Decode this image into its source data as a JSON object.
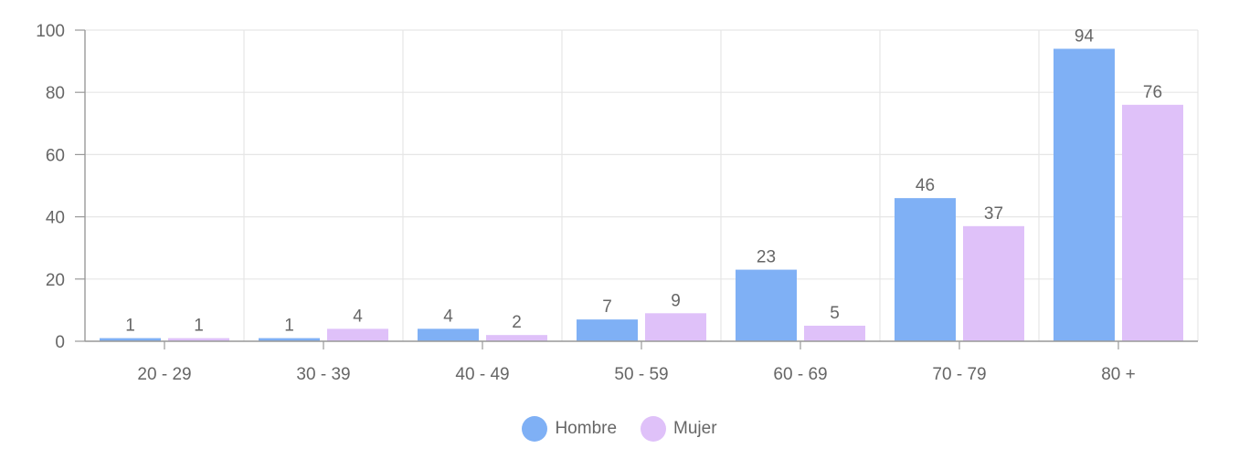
{
  "chart_data": {
    "type": "bar",
    "title": "",
    "xlabel": "",
    "ylabel": "",
    "categories": [
      "20 - 29",
      "30 - 39",
      "40 - 49",
      "50 - 59",
      "60 - 69",
      "70 - 79",
      "80 +"
    ],
    "series": [
      {
        "name": "Hombre",
        "color": "#7fb0f5",
        "values": [
          1,
          1,
          4,
          7,
          23,
          46,
          94
        ]
      },
      {
        "name": "Mujer",
        "color": "#dfc1f9",
        "values": [
          1,
          4,
          2,
          9,
          5,
          37,
          76
        ]
      }
    ],
    "ylim": [
      0,
      100
    ],
    "yticks": [
      0,
      20,
      40,
      60,
      80,
      100
    ],
    "grid": true,
    "data_labels": true,
    "legend_position": "bottom"
  },
  "legend": {
    "items": [
      {
        "label": "Hombre",
        "color": "#7fb0f5"
      },
      {
        "label": "Mujer",
        "color": "#dfc1f9"
      }
    ]
  }
}
